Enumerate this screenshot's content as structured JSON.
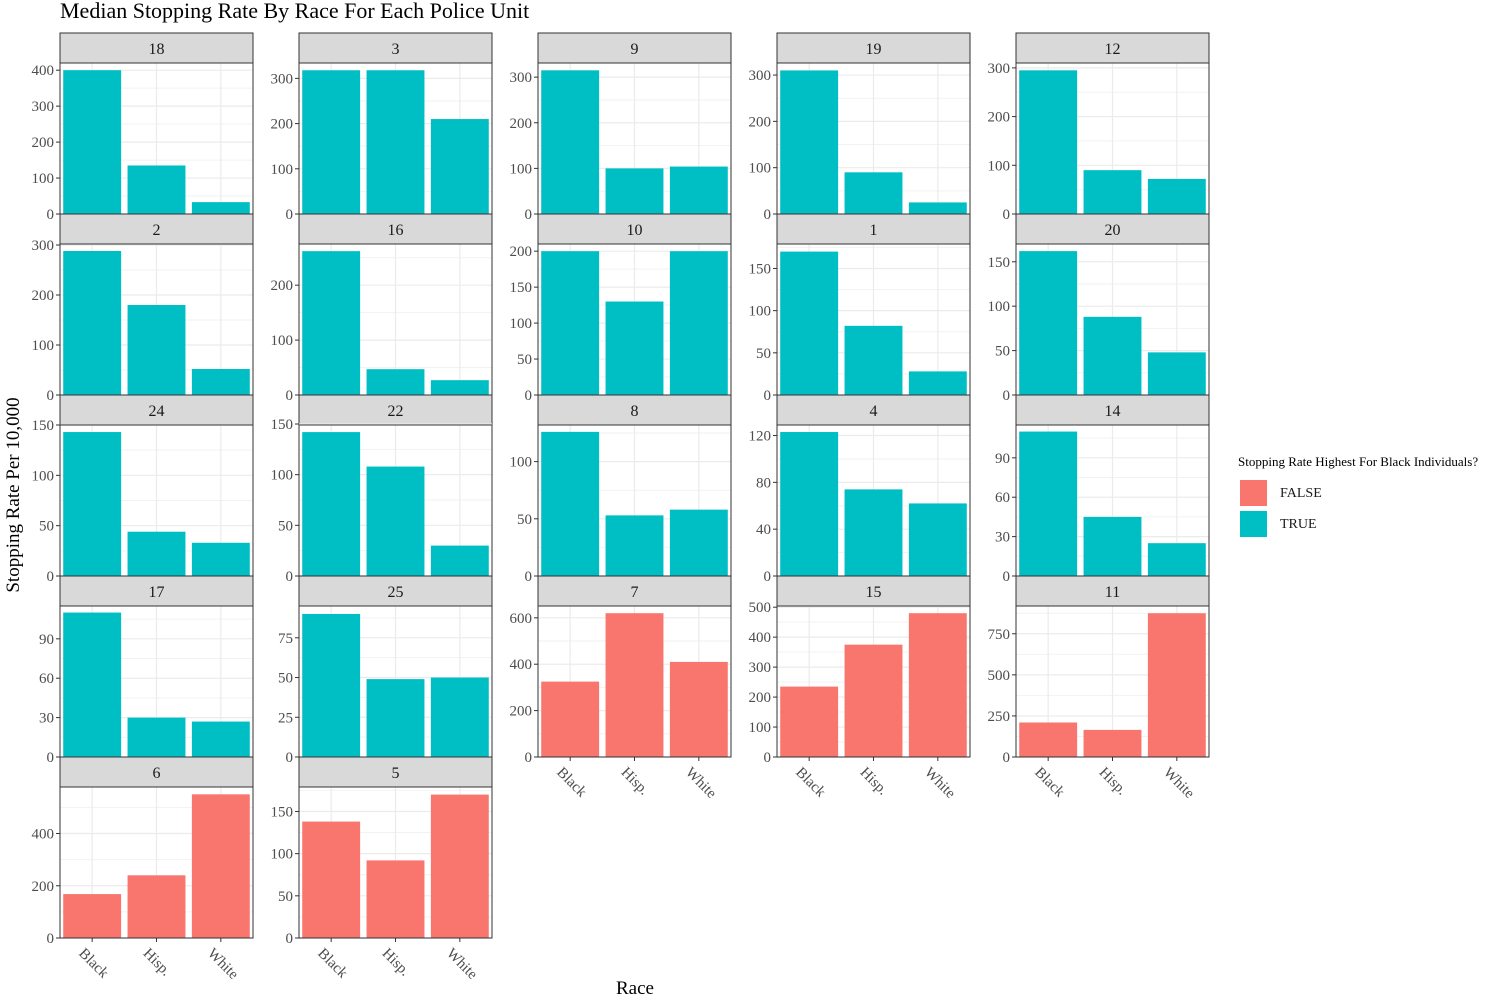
{
  "chart_data": {
    "type": "bar",
    "title": "Median Stopping Rate By Race For Each Police Unit",
    "xlabel": "Race",
    "ylabel": "Stopping Rate Per 10,000",
    "categories": [
      "Black",
      "Hisp.",
      "White"
    ],
    "legend": {
      "title": "Stopping Rate Highest For Black Individuals?",
      "position": "right",
      "entries": [
        {
          "label": "FALSE",
          "color": "#F8766D"
        },
        {
          "label": "TRUE",
          "color": "#00BFC4"
        }
      ]
    },
    "colors": {
      "FALSE": "#F8766D",
      "TRUE": "#00BFC4",
      "strip_bg": "#d9d9d9",
      "grid": "#ebebeb"
    },
    "panels": [
      {
        "unit": "18",
        "highest_black": "TRUE",
        "values": [
          400,
          135,
          33
        ],
        "ylim": [
          0,
          420
        ],
        "yticks": [
          0,
          100,
          200,
          300,
          400
        ]
      },
      {
        "unit": "3",
        "highest_black": "TRUE",
        "values": [
          318,
          318,
          210
        ],
        "ylim": [
          0,
          334
        ],
        "yticks": [
          0,
          100,
          200,
          300
        ]
      },
      {
        "unit": "9",
        "highest_black": "TRUE",
        "values": [
          315,
          100,
          104
        ],
        "ylim": [
          0,
          331
        ],
        "yticks": [
          0,
          100,
          200,
          300
        ]
      },
      {
        "unit": "19",
        "highest_black": "TRUE",
        "values": [
          310,
          90,
          25
        ],
        "ylim": [
          0,
          326
        ],
        "yticks": [
          0,
          100,
          200,
          300
        ]
      },
      {
        "unit": "12",
        "highest_black": "TRUE",
        "values": [
          295,
          90,
          72
        ],
        "ylim": [
          0,
          310
        ],
        "yticks": [
          0,
          100,
          200,
          300
        ]
      },
      {
        "unit": "2",
        "highest_black": "TRUE",
        "values": [
          288,
          180,
          52
        ],
        "ylim": [
          0,
          302
        ],
        "yticks": [
          0,
          100,
          200,
          300
        ]
      },
      {
        "unit": "16",
        "highest_black": "TRUE",
        "values": [
          262,
          47,
          27
        ],
        "ylim": [
          0,
          275
        ],
        "yticks": [
          0,
          100,
          200
        ]
      },
      {
        "unit": "10",
        "highest_black": "TRUE",
        "values": [
          200,
          130,
          200
        ],
        "ylim": [
          0,
          210
        ],
        "yticks": [
          0,
          50,
          100,
          150,
          200
        ]
      },
      {
        "unit": "1",
        "highest_black": "TRUE",
        "values": [
          170,
          82,
          28
        ],
        "ylim": [
          0,
          179
        ],
        "yticks": [
          0,
          50,
          100,
          150
        ]
      },
      {
        "unit": "20",
        "highest_black": "TRUE",
        "values": [
          162,
          88,
          48
        ],
        "ylim": [
          0,
          170
        ],
        "yticks": [
          0,
          50,
          100,
          150
        ]
      },
      {
        "unit": "24",
        "highest_black": "TRUE",
        "values": [
          143,
          44,
          33
        ],
        "ylim": [
          0,
          150
        ],
        "yticks": [
          0,
          50,
          100,
          150
        ]
      },
      {
        "unit": "22",
        "highest_black": "TRUE",
        "values": [
          142,
          108,
          30
        ],
        "ylim": [
          0,
          149
        ],
        "yticks": [
          0,
          50,
          100,
          150
        ]
      },
      {
        "unit": "8",
        "highest_black": "TRUE",
        "values": [
          126,
          53,
          58
        ],
        "ylim": [
          0,
          132
        ],
        "yticks": [
          0,
          50,
          100
        ]
      },
      {
        "unit": "4",
        "highest_black": "TRUE",
        "values": [
          123,
          74,
          62
        ],
        "ylim": [
          0,
          129
        ],
        "yticks": [
          0,
          40,
          80,
          120
        ]
      },
      {
        "unit": "14",
        "highest_black": "TRUE",
        "values": [
          110,
          45,
          25
        ],
        "ylim": [
          0,
          115
        ],
        "yticks": [
          0,
          30,
          60,
          90
        ]
      },
      {
        "unit": "17",
        "highest_black": "TRUE",
        "values": [
          110,
          30,
          27
        ],
        "ylim": [
          0,
          115
        ],
        "yticks": [
          0,
          30,
          60,
          90
        ]
      },
      {
        "unit": "25",
        "highest_black": "TRUE",
        "values": [
          90,
          49,
          50
        ],
        "ylim": [
          0,
          95
        ],
        "yticks": [
          0,
          25,
          50,
          75
        ]
      },
      {
        "unit": "7",
        "highest_black": "FALSE",
        "values": [
          325,
          620,
          410
        ],
        "ylim": [
          0,
          651
        ],
        "yticks": [
          0,
          200,
          400,
          600
        ]
      },
      {
        "unit": "15",
        "highest_black": "FALSE",
        "values": [
          235,
          375,
          480
        ],
        "ylim": [
          0,
          504
        ],
        "yticks": [
          0,
          100,
          200,
          300,
          400,
          500
        ]
      },
      {
        "unit": "11",
        "highest_black": "FALSE",
        "values": [
          210,
          165,
          875
        ],
        "ylim": [
          0,
          919
        ],
        "yticks": [
          0,
          250,
          500,
          750
        ]
      },
      {
        "unit": "6",
        "highest_black": "FALSE",
        "values": [
          168,
          240,
          550
        ],
        "ylim": [
          0,
          578
        ],
        "yticks": [
          0,
          200,
          400
        ]
      },
      {
        "unit": "5",
        "highest_black": "FALSE",
        "values": [
          138,
          92,
          170
        ],
        "ylim": [
          0,
          179
        ],
        "yticks": [
          0,
          50,
          100,
          150
        ]
      }
    ]
  }
}
